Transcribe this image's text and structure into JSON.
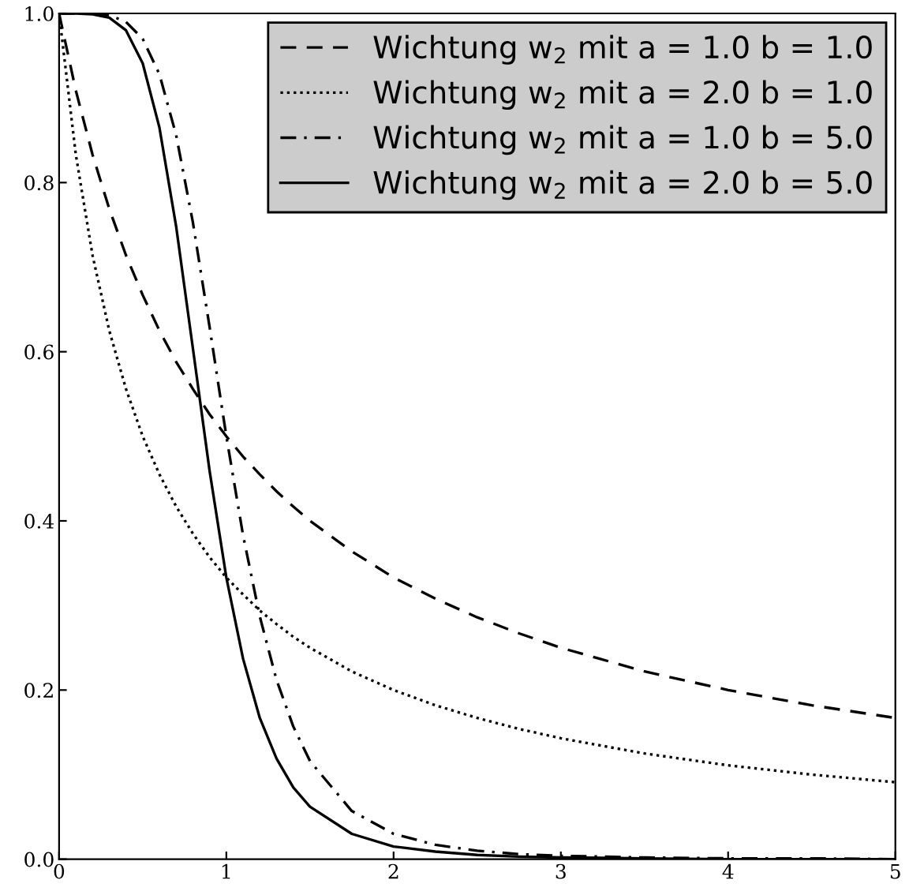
{
  "chart_data": {
    "type": "line",
    "x": [
      0,
      0.1,
      0.2,
      0.3,
      0.4,
      0.5,
      0.6,
      0.7,
      0.8,
      0.9,
      1.0,
      1.1,
      1.2,
      1.3,
      1.4,
      1.5,
      1.75,
      2,
      2.25,
      2.5,
      2.75,
      3,
      3.5,
      4,
      4.5,
      5
    ],
    "series": [
      {
        "name": "Wichtung w$_{2}$ mit a = 1.0 b = 1.0",
        "color": "#000000",
        "line_style": "dashed",
        "values": [
          1,
          0.909,
          0.833,
          0.769,
          0.714,
          0.667,
          0.625,
          0.588,
          0.556,
          0.526,
          0.5,
          0.476,
          0.455,
          0.435,
          0.417,
          0.4,
          0.364,
          0.333,
          0.308,
          0.286,
          0.267,
          0.25,
          0.222,
          0.2,
          0.182,
          0.167
        ]
      },
      {
        "name": "Wichtung w$_{2}$ mit a = 2.0 b = 1.0",
        "color": "#000000",
        "line_style": "dotted",
        "values": [
          1,
          0.833,
          0.714,
          0.625,
          0.556,
          0.5,
          0.455,
          0.417,
          0.385,
          0.357,
          0.333,
          0.313,
          0.294,
          0.278,
          0.263,
          0.25,
          0.222,
          0.2,
          0.182,
          0.167,
          0.154,
          0.143,
          0.125,
          0.111,
          0.1,
          0.091
        ]
      },
      {
        "name": "Wichtung w$_{2}$ mit a = 1.0 b = 5.0",
        "color": "#000000",
        "line_style": "dashdot",
        "values": [
          1,
          1,
          1,
          0.998,
          0.99,
          0.97,
          0.928,
          0.856,
          0.753,
          0.629,
          0.5,
          0.383,
          0.287,
          0.212,
          0.157,
          0.116,
          0.057,
          0.03,
          0.017,
          0.01,
          0.006,
          0.004,
          0.002,
          0.001,
          0.001,
          0
        ]
      },
      {
        "name": "Wichtung w$_{2}$ mit a = 2.0 b = 5.0",
        "color": "#000000",
        "line_style": "solid",
        "values": [
          1,
          1,
          0.999,
          0.995,
          0.98,
          0.941,
          0.865,
          0.748,
          0.604,
          0.459,
          0.333,
          0.237,
          0.167,
          0.119,
          0.085,
          0.062,
          0.03,
          0.015,
          0.009,
          0.005,
          0.003,
          0.002,
          0.001,
          0,
          0,
          0
        ]
      }
    ],
    "xlim": [
      0,
      5
    ],
    "ylim": [
      0,
      1
    ],
    "xticks": [
      0,
      1,
      2,
      3,
      4,
      5
    ],
    "yticks": [
      {
        "value": 0,
        "label": "0.0"
      },
      {
        "value": 0.2,
        "label": "0.2"
      },
      {
        "value": 0.4,
        "label": "0.4"
      },
      {
        "value": 0.6,
        "label": "0.6"
      },
      {
        "value": 0.8,
        "label": "0.8"
      },
      {
        "value": 1,
        "label": "1.0"
      }
    ],
    "legend": "top right",
    "grid": false,
    "marker": "none"
  }
}
